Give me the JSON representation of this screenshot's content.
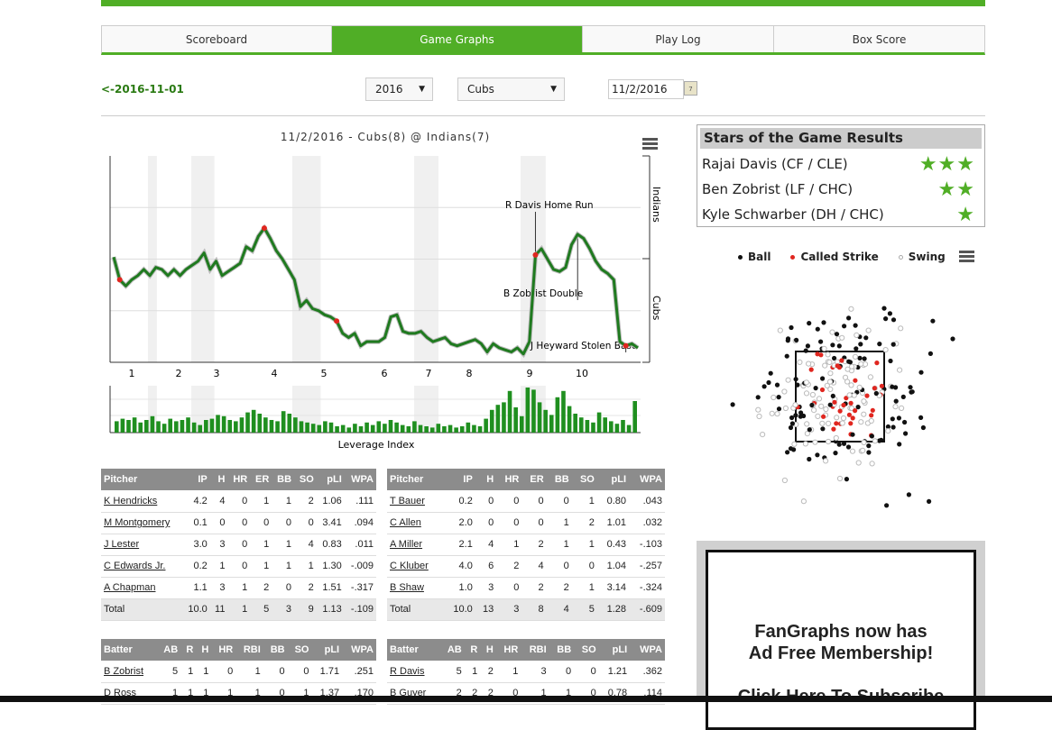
{
  "tabs": [
    {
      "label": "Scoreboard",
      "active": false
    },
    {
      "label": "Game Graphs",
      "active": true
    },
    {
      "label": "Play Log",
      "active": false
    },
    {
      "label": "Box Score",
      "active": false
    }
  ],
  "controls": {
    "prev_link": "<-2016-11-01",
    "year": "2016",
    "team": "Cubs",
    "date": "11/2/2016"
  },
  "wpa_chart": {
    "title": "11/2/2016 - Cubs(8) @ Indians(7)",
    "top_label": "Indians",
    "bottom_label": "Cubs",
    "innings": [
      "1",
      "2",
      "3",
      "4",
      "5",
      "6",
      "7",
      "8",
      "9",
      "10"
    ],
    "annotations": [
      {
        "text": "R Davis Home Run"
      },
      {
        "text": "B Zobrist Double"
      },
      {
        "text": "J Heyward Stolen Base"
      }
    ],
    "li_label": "Leverage Index",
    "colors": {
      "line": "#1f7a1f",
      "bar": "#1f8f1f",
      "marker": "#e0261f"
    }
  },
  "chart_data": [
    {
      "type": "line",
      "title": "11/2/2016 - Cubs(8) @ Indians(7)",
      "xlabel": "",
      "ylabel": "",
      "ylim": [
        0,
        1
      ],
      "y_top_label": "Indians",
      "y_bottom_label": "Cubs",
      "x": [
        1,
        2,
        3,
        4,
        5,
        6,
        7,
        8,
        9,
        10,
        11,
        12,
        13,
        14,
        15,
        16,
        17,
        18,
        19,
        20,
        21,
        22,
        23,
        24,
        25,
        26,
        27,
        28,
        29,
        30,
        31,
        32,
        33,
        34,
        35,
        36,
        37,
        38,
        39,
        40,
        41,
        42,
        43,
        44,
        45,
        46,
        47,
        48,
        49,
        50,
        51,
        52,
        53,
        54,
        55,
        56,
        57,
        58,
        59,
        60,
        61,
        62,
        63,
        64,
        65,
        66,
        67,
        68,
        69,
        70,
        71,
        72,
        73,
        74,
        75,
        76,
        77,
        78,
        79,
        80,
        81,
        82,
        83,
        84,
        85,
        86,
        87,
        88
      ],
      "values": [
        0.51,
        0.4,
        0.37,
        0.4,
        0.42,
        0.45,
        0.42,
        0.46,
        0.45,
        0.42,
        0.45,
        0.42,
        0.45,
        0.47,
        0.49,
        0.53,
        0.45,
        0.49,
        0.42,
        0.44,
        0.46,
        0.48,
        0.56,
        0.54,
        0.61,
        0.65,
        0.6,
        0.54,
        0.5,
        0.45,
        0.4,
        0.27,
        0.3,
        0.26,
        0.25,
        0.23,
        0.22,
        0.2,
        0.14,
        0.12,
        0.14,
        0.08,
        0.1,
        0.1,
        0.1,
        0.12,
        0.22,
        0.23,
        0.15,
        0.14,
        0.14,
        0.15,
        0.12,
        0.1,
        0.11,
        0.12,
        0.09,
        0.08,
        0.09,
        0.1,
        0.11,
        0.09,
        0.05,
        0.09,
        0.07,
        0.06,
        0.05,
        0.07,
        0.04,
        0.1,
        0.52,
        0.55,
        0.5,
        0.45,
        0.44,
        0.46,
        0.57,
        0.62,
        0.6,
        0.55,
        0.49,
        0.45,
        0.43,
        0.4,
        0.1,
        0.08,
        0.09,
        0.07
      ]
    },
    {
      "type": "bar",
      "title": "Leverage Index",
      "values": [
        0.9,
        1.1,
        1.0,
        1.2,
        0.8,
        1.0,
        1.3,
        0.9,
        0.7,
        1.1,
        0.9,
        1.0,
        1.2,
        0.8,
        0.6,
        1.0,
        1.1,
        1.4,
        1.3,
        1.0,
        0.9,
        1.2,
        1.6,
        1.8,
        1.5,
        1.2,
        1.0,
        0.9,
        1.7,
        1.5,
        1.2,
        0.9,
        0.8,
        0.7,
        0.6,
        0.9,
        0.8,
        0.5,
        0.6,
        0.4,
        0.7,
        0.5,
        0.8,
        0.6,
        0.9,
        0.7,
        1.0,
        0.8,
        0.6,
        0.5,
        0.9,
        0.6,
        0.5,
        0.4,
        0.7,
        0.5,
        0.6,
        0.4,
        0.5,
        0.8,
        0.6,
        0.5,
        1.1,
        1.8,
        2.2,
        2.4,
        3.3,
        2.0,
        1.3,
        3.6,
        3.4,
        2.4,
        1.8,
        1.4,
        2.8,
        3.3,
        2.1,
        1.5,
        1.2,
        1.0,
        0.8,
        1.6,
        1.2,
        0.9,
        0.7,
        1.0,
        0.6,
        2.5
      ]
    }
  ],
  "stars": {
    "title": "Stars of the Game Results",
    "players": [
      {
        "name": "Rajai Davis (CF / CLE)",
        "stars": "★★★"
      },
      {
        "name": "Ben Zobrist (LF / CHC)",
        "stars": "★★"
      },
      {
        "name": "Kyle Schwarber (DH / CHC)",
        "stars": "★"
      }
    ]
  },
  "pitch_legend": {
    "ball": "Ball",
    "called_strike": "Called Strike",
    "swing": "Swing",
    "colors": {
      "ball": "#111111",
      "called_strike": "#e0261f",
      "swing": "#bbbbbb"
    }
  },
  "pitchers_chc": {
    "headers": [
      "Pitcher",
      "IP",
      "H",
      "HR",
      "ER",
      "BB",
      "SO",
      "pLI",
      "WPA"
    ],
    "rows": [
      [
        "K Hendricks",
        "4.2",
        "4",
        "0",
        "1",
        "1",
        "2",
        "1.06",
        ".111"
      ],
      [
        "M Montgomery",
        "0.1",
        "0",
        "0",
        "0",
        "0",
        "0",
        "3.41",
        ".094"
      ],
      [
        "J Lester",
        "3.0",
        "3",
        "0",
        "1",
        "1",
        "4",
        "0.83",
        ".011"
      ],
      [
        "C Edwards Jr.",
        "0.2",
        "1",
        "0",
        "1",
        "1",
        "1",
        "1.30",
        "-.009"
      ],
      [
        "A Chapman",
        "1.1",
        "3",
        "1",
        "2",
        "0",
        "2",
        "1.51",
        "-.317"
      ]
    ],
    "total": [
      "Total",
      "10.0",
      "11",
      "1",
      "5",
      "3",
      "9",
      "1.13",
      "-.109"
    ]
  },
  "pitchers_cle": {
    "headers": [
      "Pitcher",
      "IP",
      "H",
      "HR",
      "ER",
      "BB",
      "SO",
      "pLI",
      "WPA"
    ],
    "rows": [
      [
        "T Bauer",
        "0.2",
        "0",
        "0",
        "0",
        "0",
        "1",
        "0.80",
        ".043"
      ],
      [
        "C Allen",
        "2.0",
        "0",
        "0",
        "0",
        "1",
        "2",
        "1.01",
        ".032"
      ],
      [
        "A Miller",
        "2.1",
        "4",
        "1",
        "2",
        "1",
        "1",
        "0.43",
        "-.103"
      ],
      [
        "C Kluber",
        "4.0",
        "6",
        "2",
        "4",
        "0",
        "0",
        "1.04",
        "-.257"
      ],
      [
        "B Shaw",
        "1.0",
        "3",
        "0",
        "2",
        "2",
        "1",
        "3.14",
        "-.324"
      ]
    ],
    "total": [
      "Total",
      "10.0",
      "13",
      "3",
      "8",
      "4",
      "5",
      "1.28",
      "-.609"
    ]
  },
  "batters_chc": {
    "headers": [
      "Batter",
      "AB",
      "R",
      "H",
      "HR",
      "RBI",
      "BB",
      "SO",
      "pLI",
      "WPA"
    ],
    "rows": [
      [
        "B Zobrist",
        "5",
        "1",
        "1",
        "0",
        "1",
        "0",
        "0",
        "1.71",
        ".251"
      ],
      [
        "D Ross",
        "1",
        "1",
        "1",
        "1",
        "1",
        "0",
        "1",
        "1.37",
        ".170"
      ]
    ]
  },
  "batters_cle": {
    "headers": [
      "Batter",
      "AB",
      "R",
      "H",
      "HR",
      "RBI",
      "BB",
      "SO",
      "pLI",
      "WPA"
    ],
    "rows": [
      [
        "R Davis",
        "5",
        "1",
        "2",
        "1",
        "3",
        "0",
        "0",
        "1.21",
        ".362"
      ],
      [
        "B Guyer",
        "2",
        "2",
        "2",
        "0",
        "1",
        "1",
        "0",
        "0.78",
        ".114"
      ]
    ]
  },
  "ad": {
    "line1": "FanGraphs now has",
    "line2": "Ad Free Membership!",
    "line3": "Click Here To Subscribe"
  }
}
